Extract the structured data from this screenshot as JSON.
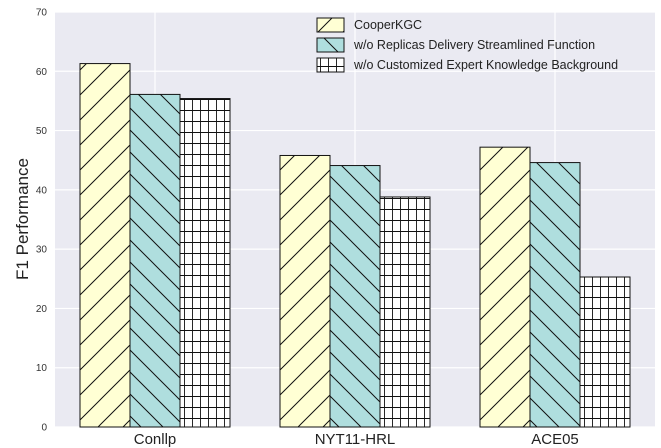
{
  "chart_data": {
    "type": "bar",
    "title": "",
    "xlabel": "",
    "ylabel": "F1 Performance",
    "ylim": [
      0,
      70
    ],
    "yticks": [
      0,
      10,
      20,
      30,
      40,
      50,
      60,
      70
    ],
    "grid": true,
    "legend_position": "top-right",
    "categories": [
      "Conllp",
      "NYT11-HRL",
      "ACE05"
    ],
    "series": [
      {
        "name": "CooperKGC",
        "values": [
          61.3,
          45.8,
          47.2
        ],
        "color": "#FFFFD4",
        "hatch": "forward-diagonal"
      },
      {
        "name": "w/o Replicas Delivery Streamlined Function",
        "values": [
          56.1,
          44.1,
          44.6
        ],
        "color": "#AFDEDE",
        "hatch": "back-diagonal"
      },
      {
        "name": "w/o Customized Expert Knowledge Background",
        "values": [
          55.4,
          38.8,
          25.3
        ],
        "color": "#FFFFFF",
        "hatch": "grid"
      }
    ]
  }
}
